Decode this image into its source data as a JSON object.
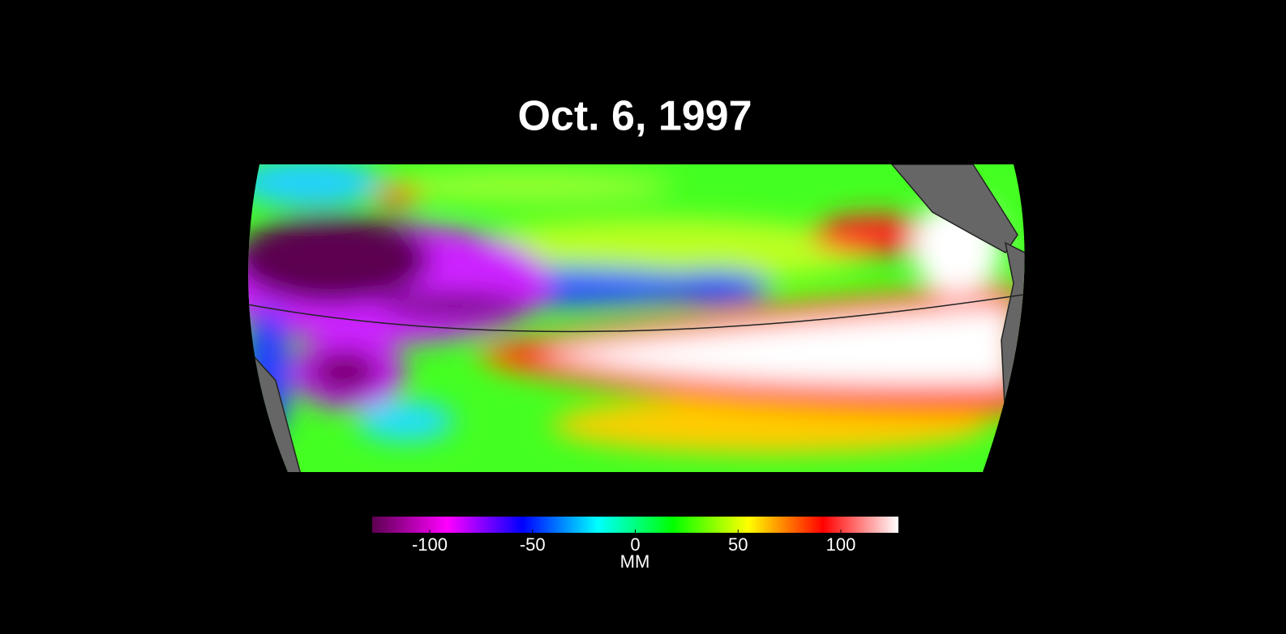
{
  "title": "Oct. 6, 1997",
  "colorbar": {
    "label": "MM",
    "range": [
      -128,
      128
    ],
    "ticks": [
      -100,
      -50,
      0,
      50,
      100
    ],
    "colors": [
      "#5c0050",
      "#ff00ff",
      "#0000ff",
      "#00ffff",
      "#00ff00",
      "#ffff00",
      "#ff0000",
      "#ffffff"
    ]
  }
}
